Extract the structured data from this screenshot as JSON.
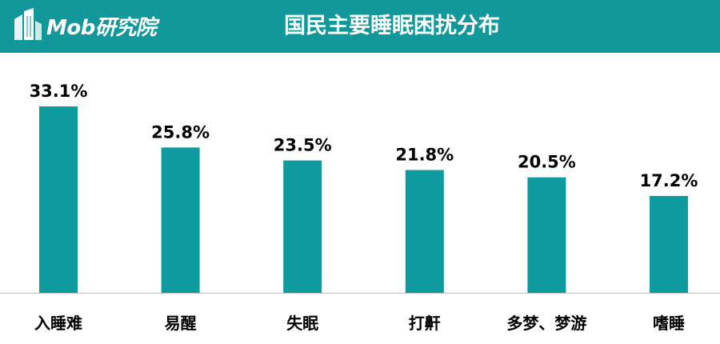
{
  "header": {
    "logo_text": "Mob研究院",
    "title": "国民主要睡眠困扰分布",
    "background_color": "#12989a",
    "logo_icon": "building-logo-icon"
  },
  "chart_data": {
    "type": "bar",
    "title": "国民主要睡眠困扰分布",
    "categories": [
      "入睡难",
      "易醒",
      "失眠",
      "打鼾",
      "多梦、梦游",
      "嗜睡"
    ],
    "values": [
      33.1,
      25.8,
      23.5,
      21.8,
      20.5,
      17.2
    ],
    "value_labels": [
      "33.1%",
      "25.8%",
      "23.5%",
      "21.8%",
      "20.5%",
      "17.2%"
    ],
    "unit": "%",
    "ylim": [
      0,
      33.1
    ],
    "bar_color": "#0e9b9f",
    "grid": false,
    "legend": "none"
  }
}
